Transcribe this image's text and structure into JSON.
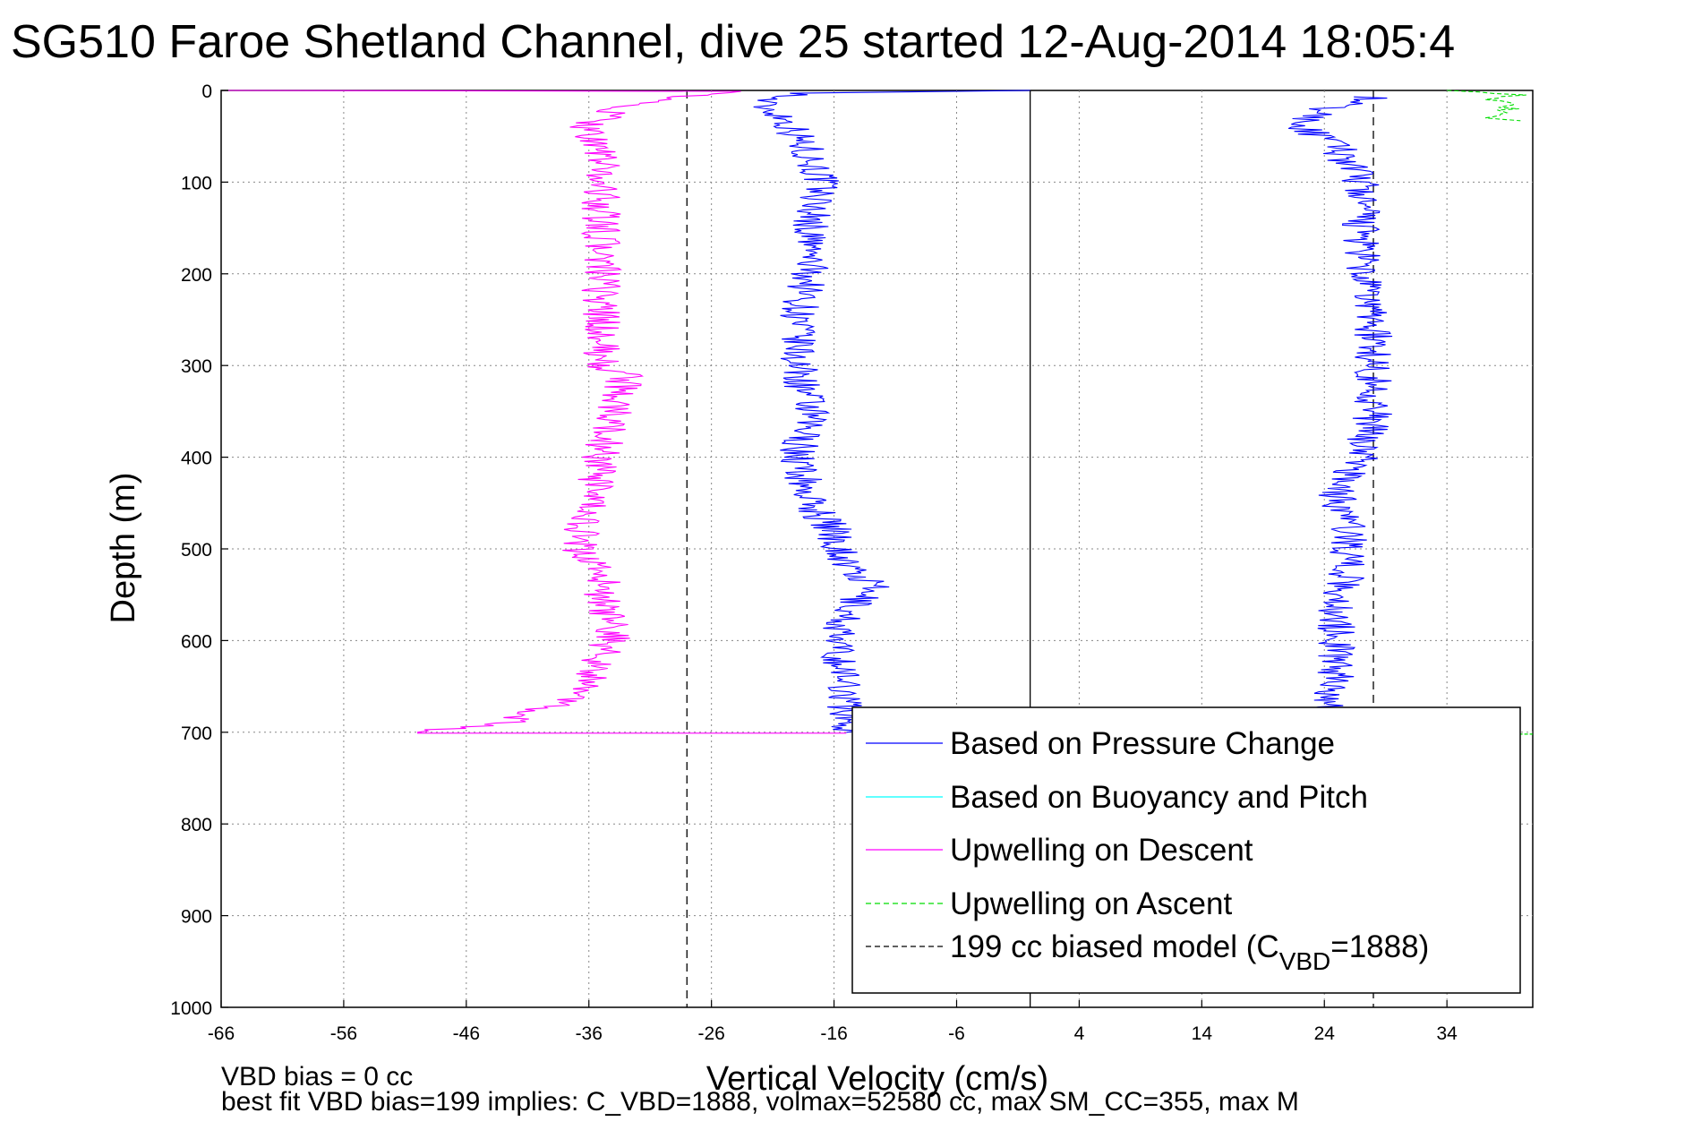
{
  "chart_data": {
    "type": "line",
    "title": "SG510 Faroe Shetland Channel, dive 25 started 12-Aug-2014 18:05:4",
    "xlabel": "Vertical Velocity (cm/s)",
    "ylabel": "Depth (m)",
    "xlim": [
      -66,
      41
    ],
    "ylim": [
      0,
      1000
    ],
    "y_reversed": true,
    "grid": true,
    "xticks": [
      "-66",
      "-56",
      "-46",
      "-36",
      "-26",
      "-16",
      "-6",
      "4",
      "14",
      "24",
      "34"
    ],
    "yticks": [
      "0",
      "100",
      "200",
      "300",
      "400",
      "500",
      "600",
      "700",
      "800",
      "900",
      "1000"
    ],
    "legend_position": "lower-right",
    "legend": [
      {
        "label": "Based on Pressure Change",
        "color": "#0000ff",
        "dash": "solid"
      },
      {
        "label": "Based on Buoyancy and Pitch",
        "color": "#00ffff",
        "dash": "solid"
      },
      {
        "label": "Upwelling on Descent",
        "color": "#ff00ff",
        "dash": "solid"
      },
      {
        "label": "Upwelling on Ascent",
        "color": "#00dd00",
        "dash": "dashed"
      },
      {
        "label_main": "199 cc biased model (C",
        "label_sub": "VBD",
        "label_tail": "=1888)",
        "color": "#000000",
        "dash": "dashed"
      }
    ],
    "reference_lines": [
      {
        "x": -28,
        "style": "dashed",
        "color": "#000000"
      },
      {
        "x": 28,
        "style": "dashed",
        "color": "#000000"
      },
      {
        "x": 0,
        "style": "solid",
        "color": "#000000"
      }
    ],
    "series": [
      {
        "name": "Based on Pressure Change",
        "color": "#0000ff",
        "description_points": [
          [
            0,
            0
          ],
          [
            -6,
            1
          ],
          [
            -18,
            3
          ],
          [
            -21,
            8
          ],
          [
            -22,
            15
          ],
          [
            -20,
            30
          ],
          [
            -19,
            50
          ],
          [
            -18,
            70
          ],
          [
            -17,
            100
          ],
          [
            -18,
            150
          ],
          [
            -18,
            200
          ],
          [
            -19,
            250
          ],
          [
            -19,
            300
          ],
          [
            -18,
            350
          ],
          [
            -19,
            400
          ],
          [
            -18,
            450
          ],
          [
            -16,
            480
          ],
          [
            -15,
            520
          ],
          [
            -13,
            540
          ],
          [
            -15,
            570
          ],
          [
            -16,
            600
          ],
          [
            -15,
            650
          ],
          [
            -15,
            680
          ],
          [
            -15,
            700
          ]
        ]
      },
      {
        "name": "Based on Pressure Change (ascent)",
        "color": "#0000ff",
        "description_points": [
          [
            28,
            7
          ],
          [
            24,
            20
          ],
          [
            22,
            40
          ],
          [
            25,
            60
          ],
          [
            27,
            100
          ],
          [
            27,
            150
          ],
          [
            27,
            200
          ],
          [
            28,
            250
          ],
          [
            28,
            300
          ],
          [
            28,
            350
          ],
          [
            27,
            400
          ],
          [
            25,
            440
          ],
          [
            26,
            480
          ],
          [
            26,
            520
          ],
          [
            25,
            560
          ],
          [
            25,
            600
          ],
          [
            25,
            650
          ],
          [
            24,
            680
          ]
        ]
      },
      {
        "name": "Upwelling on Descent",
        "color": "#ff00ff",
        "description_points": [
          [
            -66,
            0
          ],
          [
            -22,
            1
          ],
          [
            -30,
            8
          ],
          [
            -34,
            20
          ],
          [
            -36,
            40
          ],
          [
            -35,
            70
          ],
          [
            -35,
            100
          ],
          [
            -35,
            150
          ],
          [
            -35,
            200
          ],
          [
            -35,
            250
          ],
          [
            -35,
            300
          ],
          [
            -33,
            310
          ],
          [
            -34,
            350
          ],
          [
            -35,
            400
          ],
          [
            -36,
            450
          ],
          [
            -37,
            500
          ],
          [
            -35,
            520
          ],
          [
            -35,
            560
          ],
          [
            -34,
            590
          ],
          [
            -35,
            620
          ],
          [
            -37,
            660
          ],
          [
            -43,
            690
          ],
          [
            -50,
            700
          ]
        ]
      },
      {
        "name": "Upwelling on Ascent",
        "color": "#00dd00",
        "description_points": [
          [
            35,
            0
          ],
          [
            40,
            5
          ],
          [
            38,
            10
          ],
          [
            39,
            20
          ],
          [
            37,
            30
          ],
          [
            40,
            33
          ]
        ]
      }
    ]
  },
  "annotations": {
    "bias_line": "VBD bias = 0 cc",
    "best_fit_line": "best fit VBD bias=199 implies: C_VBD=1888, volmax=52580 cc, max SM_CC=355, max M"
  }
}
